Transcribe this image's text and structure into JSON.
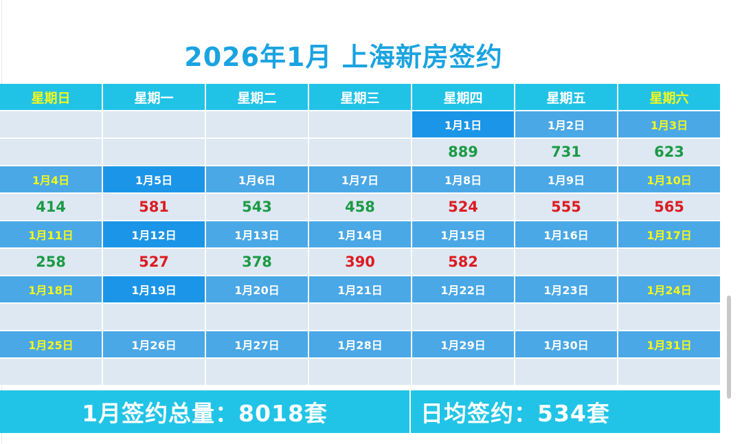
{
  "title": "2026年1月 上海新房签约",
  "weekdays": [
    "星期日",
    "星期一",
    "星期二",
    "星期三",
    "星期四",
    "星期五",
    "星期六"
  ],
  "weeks": [
    {
      "dates": [
        "",
        "",
        "",
        "",
        "1月1日",
        "1月2日",
        "1月3日"
      ],
      "values": [
        {
          "text": "",
          "color": ""
        },
        {
          "text": "",
          "color": ""
        },
        {
          "text": "",
          "color": ""
        },
        {
          "text": "",
          "color": ""
        },
        {
          "text": "889",
          "color": "green"
        },
        {
          "text": "731",
          "color": "green"
        },
        {
          "text": "623",
          "color": "green"
        }
      ]
    },
    {
      "dates": [
        "1月4日",
        "1月5日",
        "1月6日",
        "1月7日",
        "1月8日",
        "1月9日",
        "1月10日"
      ],
      "values": [
        {
          "text": "414",
          "color": "green"
        },
        {
          "text": "581",
          "color": "red"
        },
        {
          "text": "543",
          "color": "green"
        },
        {
          "text": "458",
          "color": "green"
        },
        {
          "text": "524",
          "color": "red"
        },
        {
          "text": "555",
          "color": "red"
        },
        {
          "text": "565",
          "color": "red"
        }
      ]
    },
    {
      "dates": [
        "1月11日",
        "1月12日",
        "1月13日",
        "1月14日",
        "1月15日",
        "1月16日",
        "1月17日"
      ],
      "values": [
        {
          "text": "258",
          "color": "green"
        },
        {
          "text": "527",
          "color": "red"
        },
        {
          "text": "378",
          "color": "green"
        },
        {
          "text": "390",
          "color": "red"
        },
        {
          "text": "582",
          "color": "red"
        },
        {
          "text": "",
          "color": ""
        },
        {
          "text": "",
          "color": ""
        }
      ]
    },
    {
      "dates": [
        "1月18日",
        "1月19日",
        "1月20日",
        "1月21日",
        "1月22日",
        "1月23日",
        "1月24日"
      ],
      "values": [
        {
          "text": "",
          "color": ""
        },
        {
          "text": "",
          "color": ""
        },
        {
          "text": "",
          "color": ""
        },
        {
          "text": "",
          "color": ""
        },
        {
          "text": "",
          "color": ""
        },
        {
          "text": "",
          "color": ""
        },
        {
          "text": "",
          "color": ""
        }
      ]
    },
    {
      "dates": [
        "1月25日",
        "1月26日",
        "1月27日",
        "1月28日",
        "1月29日",
        "1月30日",
        "1月31日"
      ],
      "values": [
        {
          "text": "",
          "color": ""
        },
        {
          "text": "",
          "color": ""
        },
        {
          "text": "",
          "color": ""
        },
        {
          "text": "",
          "color": ""
        },
        {
          "text": "",
          "color": ""
        },
        {
          "text": "",
          "color": ""
        },
        {
          "text": "",
          "color": ""
        }
      ]
    }
  ],
  "summary": {
    "total_label": "1月签约总量：8018套",
    "average_label": "日均签约：534套"
  },
  "colors": {
    "title": "#1aa3e0",
    "header_bg": "#20c3e6",
    "date_bg": "#4aa8e6",
    "date_bg_dark": "#1b95e8",
    "value_bg": "#dde8f2",
    "weekend_text": "#f3f71c",
    "increase": "#dd1b22",
    "decrease": "#1b9a45"
  }
}
